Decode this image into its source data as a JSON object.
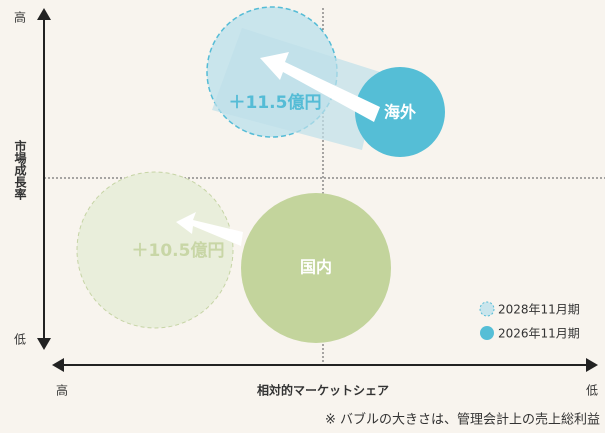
{
  "y_axis": {
    "high": "高",
    "low": "低",
    "title": "市場成長率"
  },
  "x_axis": {
    "high": "高",
    "low": "低",
    "title": "相対的マーケットシェア"
  },
  "bubbles": [
    {
      "label": "海外",
      "delta": "＋11.5億円"
    },
    {
      "label": "国内",
      "delta": "＋10.5億円"
    }
  ],
  "legend": [
    "2028年11月期",
    "2026年11月期"
  ],
  "note": "※ バブルの大きさは、管理会計上の売上総利益"
}
